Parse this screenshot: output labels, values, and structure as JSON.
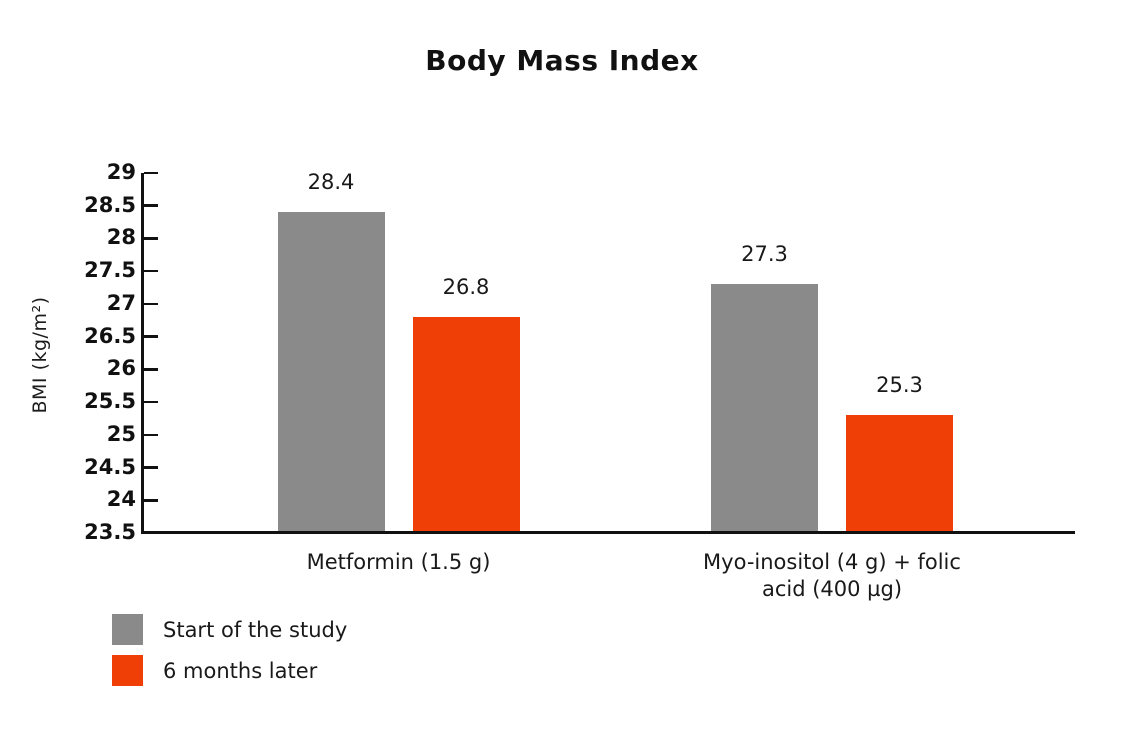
{
  "chart_data": {
    "type": "bar",
    "title": "Body Mass Index",
    "ylabel": "BMI (kg/m²)",
    "xlabel": "",
    "categories": [
      "Metformin (1.5 g)",
      "Myo-inositol (4 g) + folic acid (400 µg)"
    ],
    "series": [
      {
        "name": "Start of the study",
        "color": "#8a8a8a",
        "values": [
          28.4,
          27.3
        ]
      },
      {
        "name": "6 months later",
        "color": "#f03e07",
        "values": [
          26.8,
          25.3
        ]
      }
    ],
    "ylim": [
      23.5,
      29
    ],
    "yticks": [
      29,
      28.5,
      28,
      27.5,
      27,
      26.5,
      26,
      25.5,
      25,
      24.5,
      24,
      23.5
    ],
    "grid": false,
    "value_labels_shown": true,
    "legend_position": "bottom-left",
    "axis_color": "#111111"
  }
}
